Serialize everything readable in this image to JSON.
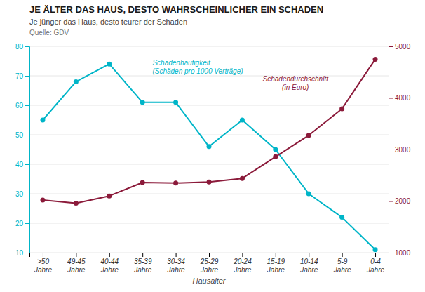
{
  "chart_data": {
    "type": "line",
    "title": "JE ÄLTER DAS HAUS, DESTO WAHRSCHEINLICHER EIN SCHADEN",
    "subtitle": "Je jünger das Haus, desto teurer der Schaden",
    "annotations": [
      "Quelle: GDV"
    ],
    "xlabel": "Hausalter",
    "categories": [
      ">50\nJahre",
      "49-45\nJahre",
      "40-44\nJahre",
      "35-39\nJahre",
      "30-34\nJahre",
      "25-29\nJahre",
      "20-24\nJahre",
      "15-19\nJahre",
      "10-14\nJahre",
      "5-9\nJahre",
      "0-4\nJahre"
    ],
    "series": [
      {
        "name": "Schadenhäufigkeit\n(Schäden pro 1000 Verträge)",
        "color": "#00B5C8",
        "axis": "y",
        "values": [
          55,
          68,
          74,
          61,
          61,
          46,
          55,
          45,
          30,
          22,
          11
        ]
      },
      {
        "name": "Schadendurchschnitt\n(in Euro)",
        "color": "#8B1A3A",
        "axis": "y2",
        "values": [
          2020,
          1960,
          2100,
          2360,
          2350,
          2370,
          2440,
          2860,
          3275,
          3790,
          4750
        ]
      }
    ],
    "ylim": [
      10,
      80
    ],
    "yticks": [
      10,
      20,
      30,
      40,
      50,
      60,
      70,
      80
    ],
    "y2lim": [
      1000,
      5000
    ],
    "y2ticks": [
      1000,
      2000,
      3000,
      4000,
      5000
    ],
    "grid": true,
    "marker": "circle"
  }
}
